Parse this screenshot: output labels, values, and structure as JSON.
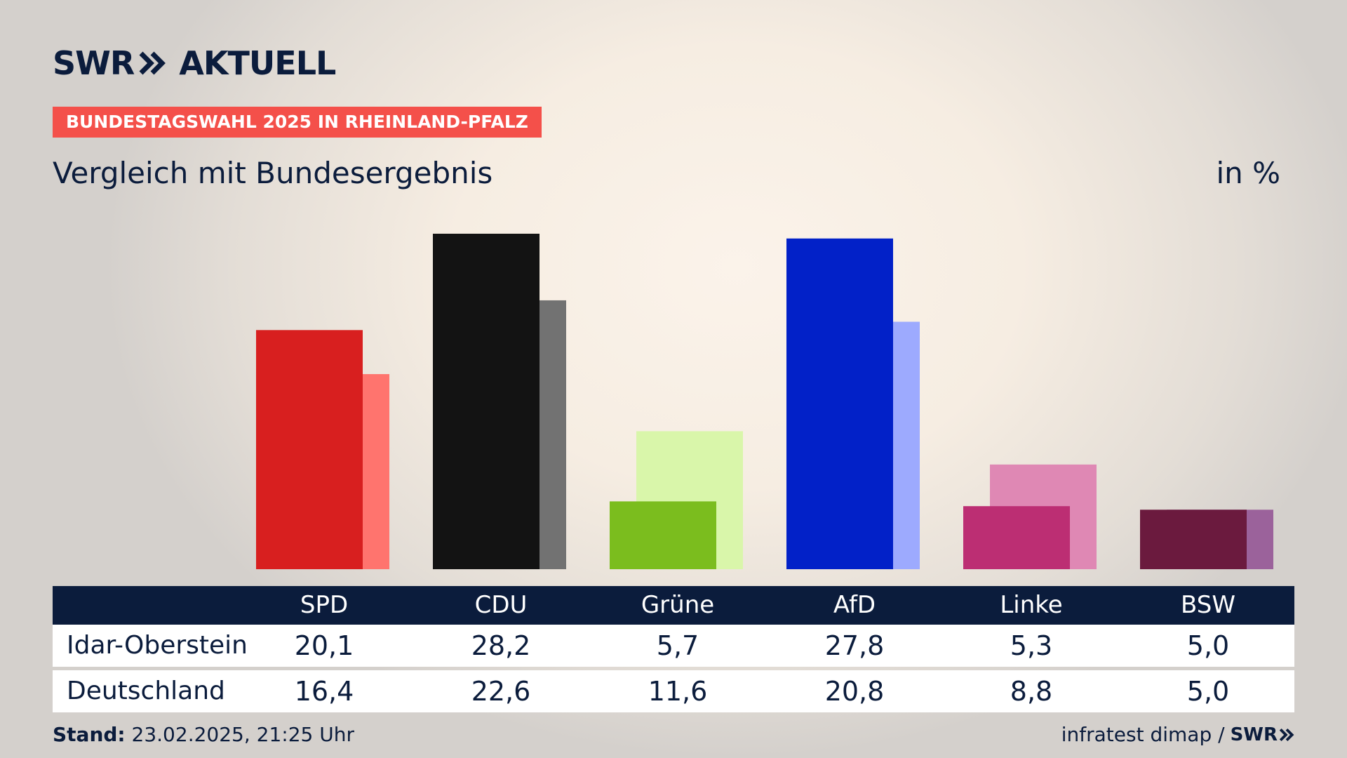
{
  "brand": {
    "logo_left": "SWR",
    "logo_right": "AKTUELL",
    "mini_logo": "SWR",
    "chevron_icon": "double-chevron-right-icon"
  },
  "tagline": "BUNDESTAGSWAHL 2025 IN RHEINLAND-PFALZ",
  "subtitle": "Vergleich mit Bundesergebnis",
  "unit": "in %",
  "chart_data": {
    "type": "bar",
    "title": "Vergleich mit Bundesergebnis",
    "unit": "in %",
    "categories": [
      "SPD",
      "CDU",
      "Grüne",
      "AfD",
      "Linke",
      "BSW"
    ],
    "series": [
      {
        "name": "Idar-Oberstein",
        "values": [
          20.1,
          28.2,
          5.7,
          27.8,
          5.3,
          5.0
        ],
        "colors": [
          "#d81f1f",
          "#131313",
          "#7bbd1e",
          "#0221c8",
          "#bc2e73",
          "#6b1a3e"
        ]
      },
      {
        "name": "Deutschland",
        "values": [
          16.4,
          22.6,
          11.6,
          20.8,
          8.8,
          5.0
        ],
        "colors": [
          "#ff746e",
          "#727272",
          "#d9f6aa",
          "#9daafe",
          "#df88b4",
          "#9b629b"
        ]
      }
    ],
    "grid": false,
    "legend": "table-below"
  },
  "table": {
    "rows": [
      {
        "label": "Idar-Oberstein",
        "values": [
          "20,1",
          "28,2",
          "5,7",
          "27,8",
          "5,3",
          "5,0"
        ]
      },
      {
        "label": "Deutschland",
        "values": [
          "16,4",
          "22,6",
          "11,6",
          "20,8",
          "8,8",
          "5,0"
        ]
      }
    ]
  },
  "footer": {
    "stand_label": "Stand:",
    "stand_value": "23.02.2025, 21:25 Uhr",
    "source": "infratest dimap /"
  }
}
